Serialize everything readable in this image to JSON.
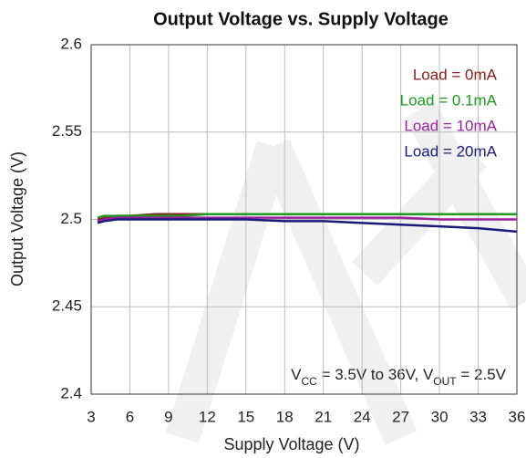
{
  "chart_data": {
    "type": "line",
    "title": "Output Voltage vs. Supply Voltage",
    "xlabel": "Supply Voltage (V)",
    "ylabel": "Output Voltage (V)",
    "x": [
      3.5,
      4,
      5,
      6,
      8,
      10,
      12,
      15,
      18,
      21,
      24,
      27,
      30,
      33,
      36
    ],
    "series": [
      {
        "name": "Load = 0mA",
        "color": "#8b1c1c",
        "values": [
          2.5,
          2.501,
          2.502,
          2.502,
          2.503,
          2.503,
          2.503,
          2.503,
          2.503,
          2.503,
          2.503,
          2.503,
          2.503,
          2.503,
          2.503
        ]
      },
      {
        "name": "Load = 0.1mA",
        "color": "#1e9a1e",
        "values": [
          2.501,
          2.502,
          2.502,
          2.502,
          2.502,
          2.502,
          2.503,
          2.503,
          2.503,
          2.503,
          2.503,
          2.503,
          2.503,
          2.503,
          2.503
        ]
      },
      {
        "name": "Load = 10mA",
        "color": "#9b1f9e",
        "values": [
          2.499,
          2.5,
          2.501,
          2.501,
          2.501,
          2.501,
          2.501,
          2.501,
          2.501,
          2.501,
          2.501,
          2.501,
          2.5,
          2.5,
          2.5
        ]
      },
      {
        "name": "Load = 20mA",
        "color": "#1a1a7a",
        "values": [
          2.498,
          2.499,
          2.5,
          2.5,
          2.5,
          2.5,
          2.5,
          2.5,
          2.499,
          2.499,
          2.498,
          2.497,
          2.496,
          2.495,
          2.493
        ]
      }
    ],
    "annotation": [
      "V",
      "CC",
      " = 3.5V to 36V, V",
      "OUT",
      " = 2.5V"
    ],
    "xlim": [
      3,
      36
    ],
    "xticks": [
      3,
      6,
      9,
      12,
      15,
      18,
      21,
      24,
      27,
      30,
      33,
      36
    ],
    "ylim": [
      2.4,
      2.6
    ],
    "yticks": [
      2.4,
      2.45,
      2.5,
      2.55,
      2.6
    ],
    "grid": true,
    "legend": "upper right"
  }
}
